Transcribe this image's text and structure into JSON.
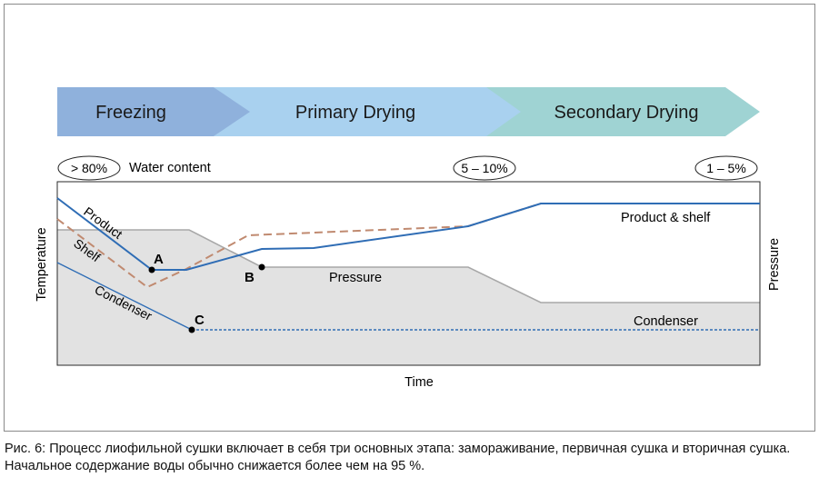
{
  "phases": [
    {
      "label": "Freezing",
      "color": "#8fb1dc"
    },
    {
      "label": "Primary Drying",
      "color": "#a9d1ef"
    },
    {
      "label": "Secondary Drying",
      "color": "#9fd3d3"
    }
  ],
  "water_content": {
    "label": "Water content",
    "start": "> 80%",
    "mid": "5 – 10%",
    "end": "1 – 5%"
  },
  "axes": {
    "left": "Temperature",
    "right": "Pressure",
    "bottom": "Time"
  },
  "curve_labels": {
    "product": "Product",
    "shelf": "Shelf",
    "condenser_left": "Condenser",
    "condenser_right": "Condenser",
    "pressure": "Pressure",
    "product_shelf": "Product & shelf"
  },
  "points": {
    "a": "A",
    "b": "B",
    "c": "C"
  },
  "colors": {
    "product": "#2f6db5",
    "shelf": "#c08a70",
    "pressure_fill": "#e2e2e2",
    "pressure_line": "#a8a8a8"
  },
  "caption": "Рис. 6: Процесс лиофильной сушки включает в себя три основных этапа: замораживание, первичная сушка и вторичная сушка. Начальное содержание воды обычно снижается более чем на 95 %."
}
